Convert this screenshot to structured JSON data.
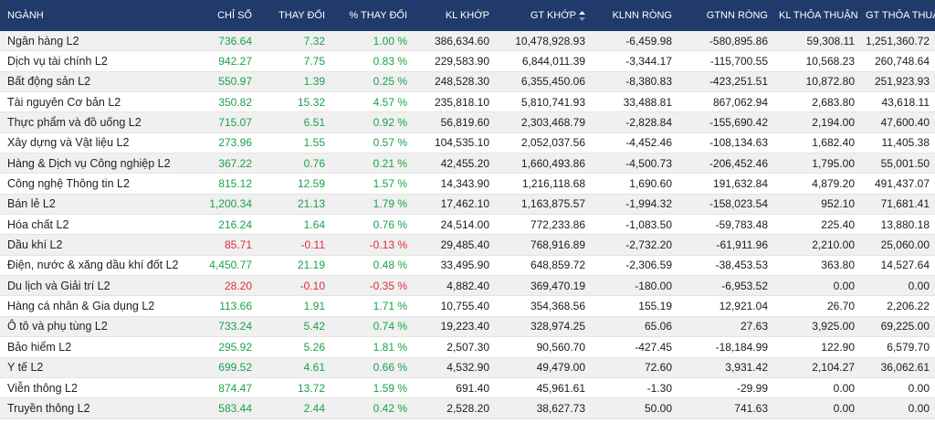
{
  "headers": {
    "name": "NGÀNH",
    "index": "CHỈ SỐ",
    "change": "THAY ĐỔI",
    "pct_change": "% THAY ĐỔI",
    "kl_khop": "KL KHỚP",
    "gt_khop": "GT KHỚP",
    "klnn_rong": "KLNN RÒNG",
    "gtnn_rong": "GTNN RÒNG",
    "kl_thoa_thuan": "KL THỎA THUẬN",
    "gt_thoa_thuan": "GT THỎA THUẬN"
  },
  "sort_icon": "sort-up-down-icon",
  "colors": {
    "header_bg": "#1f3a6b",
    "up": "#1aa14a",
    "down": "#e0283c",
    "row_alt": "#f0f0f0"
  },
  "rows": [
    {
      "name": "Ngân hàng L2",
      "index": "736.64",
      "change": "7.32",
      "pct": "1.00 %",
      "kl_khop": "386,634.60",
      "gt_khop": "10,478,928.93",
      "klnn": "-6,459.98",
      "gtnn": "-580,895.86",
      "kl_tt": "59,308.11",
      "gt_tt": "1,251,360.72",
      "trend": "up"
    },
    {
      "name": "Dịch vụ tài chính L2",
      "index": "942.27",
      "change": "7.75",
      "pct": "0.83 %",
      "kl_khop": "229,583.90",
      "gt_khop": "6,844,011.39",
      "klnn": "-3,344.17",
      "gtnn": "-115,700.55",
      "kl_tt": "10,568.23",
      "gt_tt": "260,748.64",
      "trend": "up"
    },
    {
      "name": "Bất động sản L2",
      "index": "550.97",
      "change": "1.39",
      "pct": "0.25 %",
      "kl_khop": "248,528.30",
      "gt_khop": "6,355,450.06",
      "klnn": "-8,380.83",
      "gtnn": "-423,251.51",
      "kl_tt": "10,872.80",
      "gt_tt": "251,923.93",
      "trend": "up"
    },
    {
      "name": "Tài nguyên Cơ bản L2",
      "index": "350.82",
      "change": "15.32",
      "pct": "4.57 %",
      "kl_khop": "235,818.10",
      "gt_khop": "5,810,741.93",
      "klnn": "33,488.81",
      "gtnn": "867,062.94",
      "kl_tt": "2,683.80",
      "gt_tt": "43,618.11",
      "trend": "up"
    },
    {
      "name": "Thực phẩm và đồ uống L2",
      "index": "715.07",
      "change": "6.51",
      "pct": "0.92 %",
      "kl_khop": "56,819.60",
      "gt_khop": "2,303,468.79",
      "klnn": "-2,828.84",
      "gtnn": "-155,690.42",
      "kl_tt": "2,194.00",
      "gt_tt": "47,600.40",
      "trend": "up"
    },
    {
      "name": "Xây dựng và Vật liệu L2",
      "index": "273.96",
      "change": "1.55",
      "pct": "0.57 %",
      "kl_khop": "104,535.10",
      "gt_khop": "2,052,037.56",
      "klnn": "-4,452.46",
      "gtnn": "-108,134.63",
      "kl_tt": "1,682.40",
      "gt_tt": "11,405.38",
      "trend": "up"
    },
    {
      "name": "Hàng & Dịch vụ Công nghiệp L2",
      "index": "367.22",
      "change": "0.76",
      "pct": "0.21 %",
      "kl_khop": "42,455.20",
      "gt_khop": "1,660,493.86",
      "klnn": "-4,500.73",
      "gtnn": "-206,452.46",
      "kl_tt": "1,795.00",
      "gt_tt": "55,001.50",
      "trend": "up"
    },
    {
      "name": "Công nghệ Thông tin L2",
      "index": "815.12",
      "change": "12.59",
      "pct": "1.57 %",
      "kl_khop": "14,343.90",
      "gt_khop": "1,216,118.68",
      "klnn": "1,690.60",
      "gtnn": "191,632.84",
      "kl_tt": "4,879.20",
      "gt_tt": "491,437.07",
      "trend": "up"
    },
    {
      "name": "Bán lẻ L2",
      "index": "1,200.34",
      "change": "21.13",
      "pct": "1.79 %",
      "kl_khop": "17,462.10",
      "gt_khop": "1,163,875.57",
      "klnn": "-1,994.32",
      "gtnn": "-158,023.54",
      "kl_tt": "952.10",
      "gt_tt": "71,681.41",
      "trend": "up"
    },
    {
      "name": "Hóa chất L2",
      "index": "216.24",
      "change": "1.64",
      "pct": "0.76 %",
      "kl_khop": "24,514.00",
      "gt_khop": "772,233.86",
      "klnn": "-1,083.50",
      "gtnn": "-59,783.48",
      "kl_tt": "225.40",
      "gt_tt": "13,880.18",
      "trend": "up"
    },
    {
      "name": "Dầu khí L2",
      "index": "85.71",
      "change": "-0.11",
      "pct": "-0.13 %",
      "kl_khop": "29,485.40",
      "gt_khop": "768,916.89",
      "klnn": "-2,732.20",
      "gtnn": "-61,911.96",
      "kl_tt": "2,210.00",
      "gt_tt": "25,060.00",
      "trend": "down"
    },
    {
      "name": "Điện, nước & xăng dầu khí đốt L2",
      "index": "4,450.77",
      "change": "21.19",
      "pct": "0.48 %",
      "kl_khop": "33,495.90",
      "gt_khop": "648,859.72",
      "klnn": "-2,306.59",
      "gtnn": "-38,453.53",
      "kl_tt": "363.80",
      "gt_tt": "14,527.64",
      "trend": "up"
    },
    {
      "name": "Du lịch và Giải trí L2",
      "index": "28.20",
      "change": "-0.10",
      "pct": "-0.35 %",
      "kl_khop": "4,882.40",
      "gt_khop": "369,470.19",
      "klnn": "-180.00",
      "gtnn": "-6,953.52",
      "kl_tt": "0.00",
      "gt_tt": "0.00",
      "trend": "down"
    },
    {
      "name": "Hàng cá nhân & Gia dụng L2",
      "index": "113.66",
      "change": "1.91",
      "pct": "1.71 %",
      "kl_khop": "10,755.40",
      "gt_khop": "354,368.56",
      "klnn": "155.19",
      "gtnn": "12,921.04",
      "kl_tt": "26.70",
      "gt_tt": "2,206.22",
      "trend": "up"
    },
    {
      "name": "Ô tô và phụ tùng L2",
      "index": "733.24",
      "change": "5.42",
      "pct": "0.74 %",
      "kl_khop": "19,223.40",
      "gt_khop": "328,974.25",
      "klnn": "65.06",
      "gtnn": "27.63",
      "kl_tt": "3,925.00",
      "gt_tt": "69,225.00",
      "trend": "up"
    },
    {
      "name": "Bảo hiểm L2",
      "index": "295.92",
      "change": "5.26",
      "pct": "1.81 %",
      "kl_khop": "2,507.30",
      "gt_khop": "90,560.70",
      "klnn": "-427.45",
      "gtnn": "-18,184.99",
      "kl_tt": "122.90",
      "gt_tt": "6,579.70",
      "trend": "up"
    },
    {
      "name": "Y tế L2",
      "index": "699.52",
      "change": "4.61",
      "pct": "0.66 %",
      "kl_khop": "4,532.90",
      "gt_khop": "49,479.00",
      "klnn": "72.60",
      "gtnn": "3,931.42",
      "kl_tt": "2,104.27",
      "gt_tt": "36,062.61",
      "trend": "up"
    },
    {
      "name": "Viễn thông L2",
      "index": "874.47",
      "change": "13.72",
      "pct": "1.59 %",
      "kl_khop": "691.40",
      "gt_khop": "45,961.61",
      "klnn": "-1.30",
      "gtnn": "-29.99",
      "kl_tt": "0.00",
      "gt_tt": "0.00",
      "trend": "up"
    },
    {
      "name": "Truyền thông L2",
      "index": "583.44",
      "change": "2.44",
      "pct": "0.42 %",
      "kl_khop": "2,528.20",
      "gt_khop": "38,627.73",
      "klnn": "50.00",
      "gtnn": "741.63",
      "kl_tt": "0.00",
      "gt_tt": "0.00",
      "trend": "up"
    }
  ]
}
